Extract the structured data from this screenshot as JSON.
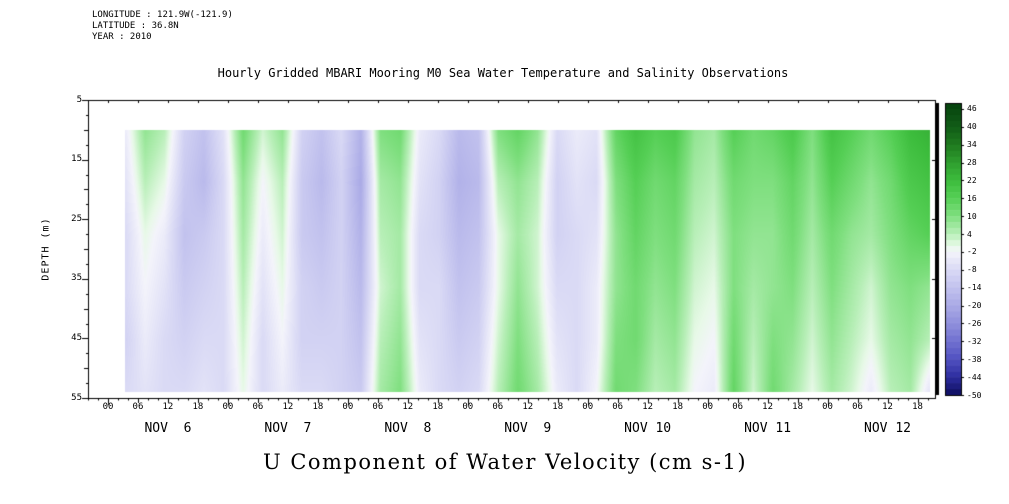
{
  "header": {
    "longitude": "LONGITUDE : 121.9W(-121.9)",
    "latitude": "LATITUDE : 36.8N",
    "year": "YEAR : 2010"
  },
  "title": "Hourly Gridded MBARI Mooring M0 Sea Water Temperature and Salinity Observations",
  "bottom_label": "U Component of Water Velocity (cm s-1)",
  "chart_data": {
    "type": "heatmap",
    "title": "Hourly Gridded MBARI Mooring M0 Sea Water Temperature and Salinity Observations",
    "xlabel": "U Component of Water Velocity (cm s-1)",
    "ylabel": "DEPTH (m)",
    "x_axis": {
      "hour_tick_labels": [
        "00",
        "06",
        "12",
        "18"
      ],
      "day_labels": [
        "NOV  6",
        "NOV  7",
        "NOV  8",
        "NOV  9",
        "NOV 10",
        "NOV 11",
        "NOV 12"
      ],
      "hours_range": [
        -4,
        165.5
      ],
      "labeled_hours_start": 0,
      "labeled_hours_end": 162,
      "label_step_hours": 6
    },
    "y_axis": {
      "ticks": [
        5,
        15,
        25,
        35,
        45,
        55
      ],
      "range": [
        5,
        55
      ]
    },
    "colorbar": {
      "tick_labels": [
        46,
        40,
        34,
        28,
        22,
        16,
        10,
        4,
        -2,
        -8,
        -14,
        -20,
        -26,
        -32,
        -38,
        -44,
        -50
      ],
      "value_range": [
        48,
        -50
      ],
      "stops": [
        [
          48,
          "#06420e"
        ],
        [
          40,
          "#115c17"
        ],
        [
          34,
          "#1f7a1f"
        ],
        [
          28,
          "#2f9e2f"
        ],
        [
          22,
          "#3cbc3c"
        ],
        [
          16,
          "#55cf55"
        ],
        [
          10,
          "#7fdf7f"
        ],
        [
          4,
          "#b8efb8"
        ],
        [
          0,
          "#e8f9e8"
        ],
        [
          -2,
          "#f4f4fb"
        ],
        [
          -8,
          "#dadaf5"
        ],
        [
          -14,
          "#c2c2ee"
        ],
        [
          -20,
          "#aaaae6"
        ],
        [
          -26,
          "#9090dc"
        ],
        [
          -32,
          "#7070d0"
        ],
        [
          -38,
          "#5050c0"
        ],
        [
          -44,
          "#2c2c9e"
        ],
        [
          -50,
          "#0d0d5e"
        ]
      ]
    },
    "grid": {
      "units": "cm s-1",
      "hours_start": 3.5,
      "hours_end": 164.5,
      "depth_start": 10,
      "depth_end": 54,
      "values": [
        [
          -4,
          8,
          4,
          -10,
          -14,
          -6,
          12,
          2,
          8,
          -10,
          -14,
          -8,
          -18,
          10,
          12,
          -4,
          -8,
          -16,
          -14,
          10,
          14,
          8,
          -8,
          -4,
          -6,
          14,
          20,
          16,
          18,
          8,
          6,
          16,
          12,
          14,
          18,
          10,
          20,
          16,
          12,
          16,
          22,
          24
        ],
        [
          -6,
          4,
          0,
          -12,
          -16,
          -8,
          8,
          -2,
          4,
          -12,
          -16,
          -10,
          -20,
          6,
          8,
          -6,
          -10,
          -18,
          -16,
          4,
          8,
          4,
          -10,
          -6,
          -8,
          10,
          16,
          12,
          14,
          6,
          4,
          12,
          10,
          10,
          14,
          8,
          16,
          12,
          8,
          12,
          18,
          20
        ],
        [
          -8,
          0,
          -4,
          -14,
          -12,
          -8,
          6,
          -4,
          2,
          -12,
          -14,
          -10,
          -18,
          4,
          6,
          -8,
          -10,
          -16,
          -14,
          0,
          6,
          2,
          -10,
          -8,
          -6,
          8,
          14,
          10,
          12,
          4,
          2,
          10,
          8,
          8,
          12,
          6,
          12,
          8,
          6,
          10,
          14,
          16
        ],
        [
          -8,
          -2,
          -6,
          -12,
          -10,
          -8,
          4,
          -6,
          0,
          -10,
          -12,
          -10,
          -16,
          2,
          6,
          -8,
          -8,
          -14,
          -12,
          0,
          8,
          2,
          -8,
          -8,
          -4,
          8,
          12,
          8,
          10,
          2,
          0,
          10,
          6,
          8,
          10,
          4,
          10,
          6,
          2,
          8,
          10,
          8
        ],
        [
          -10,
          -4,
          -8,
          -10,
          -8,
          -8,
          2,
          -8,
          -2,
          -10,
          -10,
          -10,
          -14,
          4,
          8,
          -6,
          -8,
          -12,
          -10,
          2,
          10,
          4,
          -6,
          -8,
          -4,
          10,
          12,
          6,
          8,
          0,
          -2,
          12,
          4,
          10,
          8,
          2,
          8,
          4,
          0,
          6,
          8,
          4
        ],
        [
          -8,
          -6,
          -8,
          -8,
          -6,
          -8,
          0,
          -8,
          -4,
          -8,
          -8,
          -10,
          -12,
          6,
          10,
          -4,
          -8,
          -10,
          -8,
          4,
          12,
          6,
          -4,
          -8,
          -2,
          12,
          10,
          4,
          6,
          -2,
          -4,
          14,
          2,
          12,
          6,
          0,
          6,
          2,
          -4,
          4,
          6,
          -6
        ]
      ]
    }
  }
}
